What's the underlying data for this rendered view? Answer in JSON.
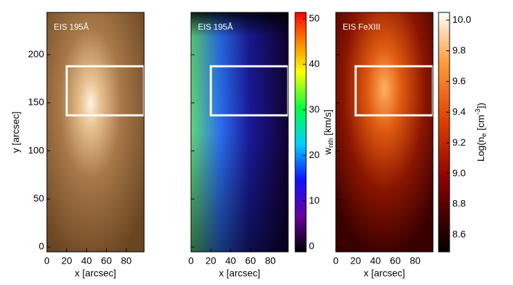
{
  "chart_data": [
    {
      "type": "image",
      "title": "EIS 195Å",
      "colormap": "copper",
      "xlabel": "x [arcsec]",
      "ylabel": "y [arcsec]",
      "xlim": [
        0,
        98
      ],
      "ylim": [
        -5,
        244
      ],
      "xticks": [
        0,
        20,
        40,
        60,
        80
      ],
      "yticks": [
        0,
        50,
        100,
        150,
        200
      ],
      "ytick_labels": true,
      "region": {
        "x": [
          20,
          98
        ],
        "y": [
          137,
          188
        ]
      }
    },
    {
      "type": "image",
      "title": "EIS 195Å",
      "colormap": "rainbow",
      "xlabel": "x [arcsec]",
      "xlim": [
        0,
        98
      ],
      "ylim": [
        -5,
        244
      ],
      "xticks": [
        0,
        20,
        40,
        60,
        80
      ],
      "yticks": [
        0,
        50,
        100,
        150,
        200
      ],
      "ytick_labels": false,
      "region": {
        "x": [
          20,
          98
        ],
        "y": [
          137,
          188
        ]
      },
      "colorbar": {
        "ylim": [
          -1.2,
          51.4
        ],
        "yticks": [
          0,
          10,
          20,
          30,
          40,
          50
        ],
        "label": [
          "w",
          "nth",
          " [km/s]"
        ]
      }
    },
    {
      "type": "image",
      "title": "EIS FeXIII",
      "colormap": "hot",
      "xlabel": "x [arcsec]",
      "xlim": [
        0,
        98
      ],
      "ylim": [
        -5,
        244
      ],
      "xticks": [
        0,
        20,
        40,
        60,
        80
      ],
      "yticks": [
        0,
        50,
        100,
        150,
        200
      ],
      "ytick_labels": false,
      "region": {
        "x": [
          20,
          98
        ],
        "y": [
          137,
          188
        ]
      },
      "colorbar": {
        "ylim": [
          8.49,
          10.05
        ],
        "yticks": [
          {
            "value": 8.6,
            "label": "8.6"
          },
          {
            "value": 8.8,
            "label": "8.8"
          },
          {
            "value": 9.0,
            "label": "9.0"
          },
          {
            "value": 9.2,
            "label": "9.2"
          },
          {
            "value": 9.4,
            "label": "9.4"
          },
          {
            "value": 9.6,
            "label": "9.6"
          },
          {
            "value": 9.8,
            "label": "9.8"
          },
          {
            "value": 10.0,
            "label": "10.0"
          }
        ],
        "label": [
          "Log(n",
          "e",
          " [cm",
          "-3",
          "])"
        ]
      }
    }
  ]
}
